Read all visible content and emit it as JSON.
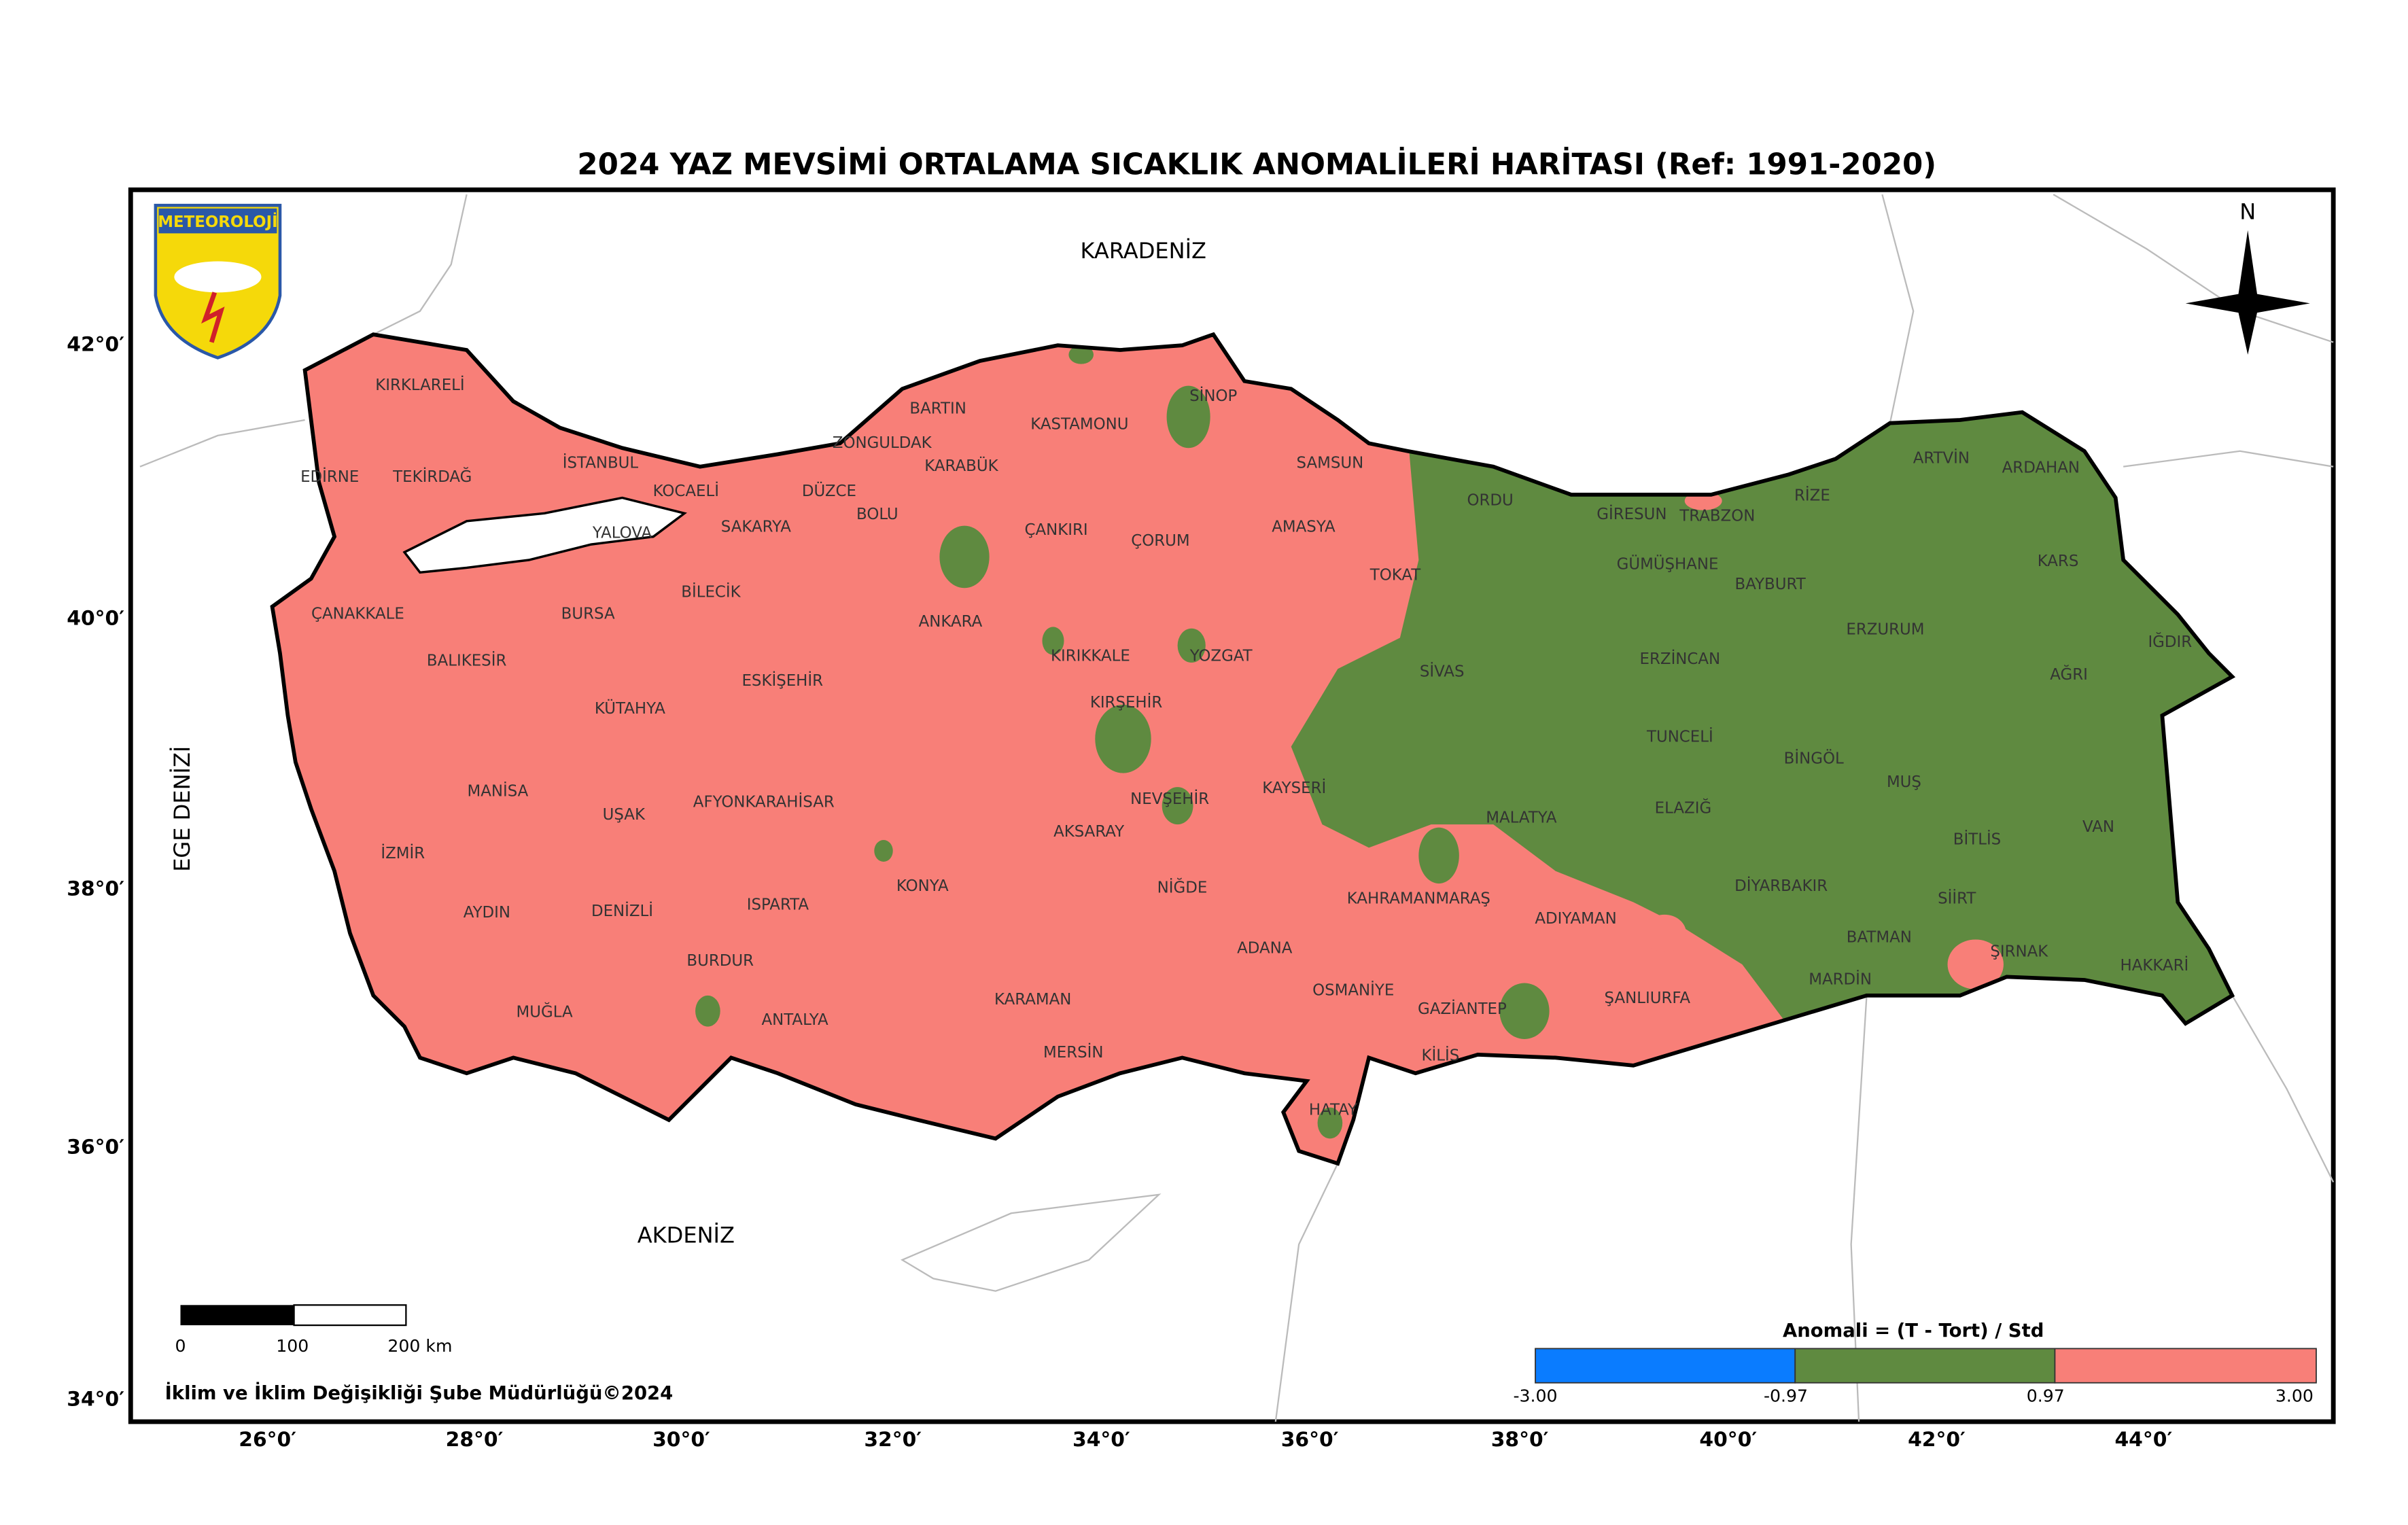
{
  "title": "2024 YAZ MEVSİMİ ORTALAMA SICAKLIK ANOMALİLERİ HARİTASI (Ref: 1991-2020)",
  "logo_text": "METEOROLOJİ",
  "north": "N",
  "seas": {
    "black_sea": "KARADENİZ",
    "mediterranean": "AKDENİZ",
    "aegean": "EGE DENİZİ"
  },
  "provinces": [
    "KIRKLARELİ",
    "EDİRNE",
    "TEKİRDAĞ",
    "İSTANBUL",
    "KOCAELİ",
    "YALOVA",
    "SAKARYA",
    "DÜZCE",
    "BOLU",
    "ZONGULDAK",
    "BARTIN",
    "KARABÜK",
    "KASTAMONU",
    "SİNOP",
    "SAMSUN",
    "ÇANKIRI",
    "ÇORUM",
    "AMASYA",
    "TOKAT",
    "ORDU",
    "GİRESUN",
    "TRABZON",
    "RİZE",
    "ARTVİN",
    "ARDAHAN",
    "KARS",
    "IĞDIR",
    "AĞRI",
    "ERZURUM",
    "BAYBURT",
    "GÜMÜŞHANE",
    "ERZİNCAN",
    "SİVAS",
    "YOZGAT",
    "KIRIKKALE",
    "ANKARA",
    "BİLECİK",
    "ÇANAKKALE",
    "BURSA",
    "BALIKESİR",
    "ESKİŞEHİR",
    "KÜTAHYA",
    "KIRŞEHİR",
    "NEVŞEHİR",
    "KAYSERİ",
    "TUNCELİ",
    "BİNGÖL",
    "MUŞ",
    "VAN",
    "BİTLİS",
    "ELAZIĞ",
    "MALATYA",
    "MANİSA",
    "UŞAK",
    "AFYONKARAHİSAR",
    "İZMİR",
    "AKSARAY",
    "KONYA",
    "NİĞDE",
    "DİYARBAKIR",
    "SİİRT",
    "ŞIRNAK",
    "HAKKARİ",
    "BATMAN",
    "MARDİN",
    "ADIYAMAN",
    "KAHRAMANMARAŞ",
    "AYDIN",
    "DENİZLİ",
    "ISPARTA",
    "BURDUR",
    "ADANA",
    "OSMANİYE",
    "GAZİANTEP",
    "ŞANLIURFA",
    "KARAMAN",
    "MUĞLA",
    "ANTALYA",
    "MERSİN",
    "KİLİS",
    "HATAY"
  ],
  "axes": {
    "lat_labels": [
      "42°0′",
      "40°0′",
      "38°0′",
      "36°0′",
      "34°0′"
    ],
    "lon_labels": [
      "26°0′",
      "28°0′",
      "30°0′",
      "32°0′",
      "34°0′",
      "36°0′",
      "38°0′",
      "40°0′",
      "42°0′",
      "44°0′"
    ]
  },
  "scale_bar": {
    "labels": [
      "0",
      "100",
      "200 km"
    ]
  },
  "credit": "İklim ve İklim Değişikliği Şube Müdürlüğü©2024",
  "legend": {
    "title": "Anomali = (T - Tort) / Std",
    "labels": [
      "-3.00",
      "-0.97",
      "0.97",
      "3.00"
    ]
  }
}
